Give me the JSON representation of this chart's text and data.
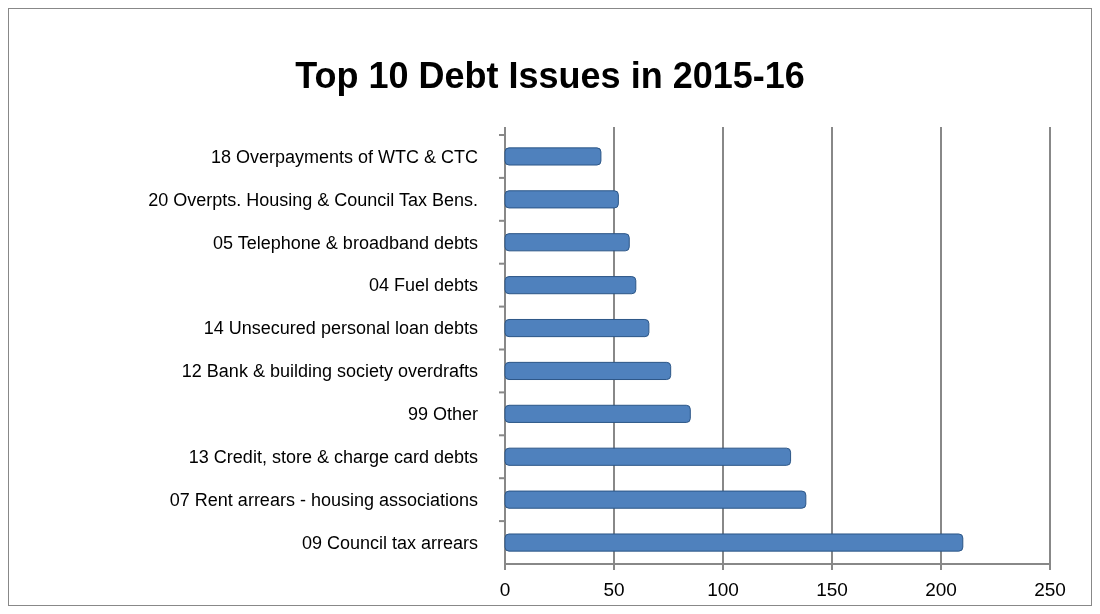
{
  "chart_data": {
    "type": "bar",
    "title": "Top 10 Debt Issues in 2015-16",
    "orientation": "horizontal",
    "categories": [
      "18 Overpayments of WTC & CTC",
      "20 Overpts. Housing & Council Tax Bens.",
      "05 Telephone & broadband debts",
      "04 Fuel debts",
      "14 Unsecured personal loan debts",
      "12 Bank & building society overdrafts",
      "99 Other",
      "13 Credit, store & charge card debts",
      "07 Rent arrears -  housing associations",
      "09 Council tax arrears"
    ],
    "values": [
      44,
      52,
      57,
      60,
      66,
      76,
      85,
      131,
      138,
      210
    ],
    "color": "#4f81bd",
    "xlim": [
      0,
      250
    ],
    "xticks": [
      0,
      50,
      100,
      150,
      200,
      250
    ],
    "grid": "x"
  }
}
